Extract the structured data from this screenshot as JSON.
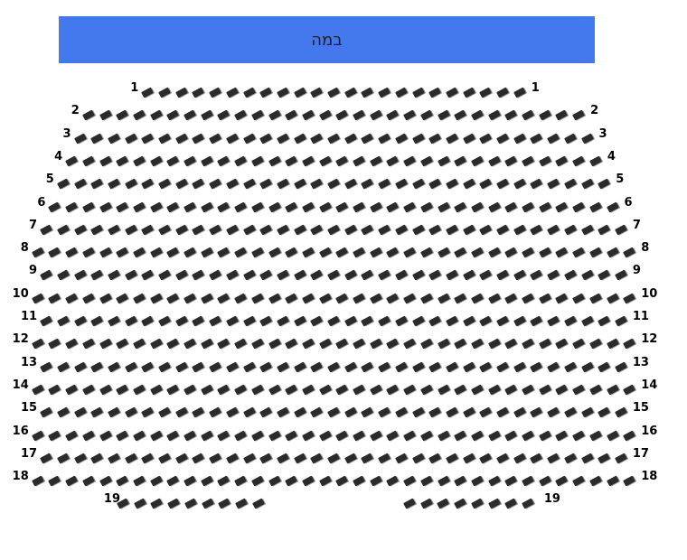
{
  "stage": {
    "label": "במה",
    "color": "#4479ee"
  },
  "seat_color": "#2b2b2b",
  "rows": [
    {
      "label": "1",
      "seats": 23
    },
    {
      "label": "2",
      "seats": 30
    },
    {
      "label": "3",
      "seats": 31
    },
    {
      "label": "4",
      "seats": 32
    },
    {
      "label": "5",
      "seats": 33
    },
    {
      "label": "6",
      "seats": 34
    },
    {
      "label": "7",
      "seats": 35
    },
    {
      "label": "8",
      "seats": 36
    },
    {
      "label": "9",
      "seats": 35
    },
    {
      "label": "10",
      "seats": 36
    },
    {
      "label": "11",
      "seats": 35
    },
    {
      "label": "12",
      "seats": 36
    },
    {
      "label": "13",
      "seats": 35
    },
    {
      "label": "14",
      "seats": 36
    },
    {
      "label": "15",
      "seats": 35
    },
    {
      "label": "16",
      "seats": 36
    },
    {
      "label": "17",
      "seats": 35
    },
    {
      "label": "18",
      "seats": 36
    },
    {
      "label": "19",
      "seats_left": 9,
      "seats_right": 8
    }
  ]
}
